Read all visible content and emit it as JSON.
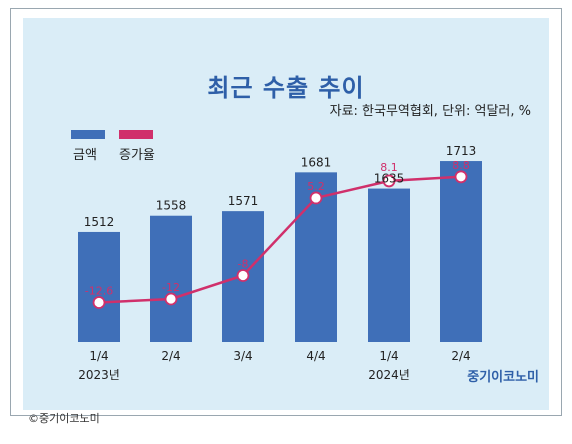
{
  "title": "최근 수출 추이",
  "source": "자료: 한국무역협회, 단위: 억달러, %",
  "legend": {
    "amount": {
      "label": "금액",
      "color": "#3f6fb8"
    },
    "growth": {
      "label": "증가율",
      "color": "#d0306b"
    }
  },
  "brand": "중기이코노미",
  "caption": "©중기이코노미",
  "chart_data": {
    "type": "bar",
    "categories": [
      "1/4",
      "2/4",
      "3/4",
      "4/4",
      "1/4",
      "2/4"
    ],
    "years": [
      {
        "label": "2023년",
        "under_index": 0
      },
      {
        "label": "2024년",
        "under_index": 4
      }
    ],
    "series": [
      {
        "name": "금액",
        "type": "bar",
        "values": [
          1512,
          1558,
          1571,
          1681,
          1635,
          1713
        ],
        "labels": [
          "1512",
          "1558",
          "1571",
          "1681",
          "1635",
          "1713"
        ]
      },
      {
        "name": "증가율",
        "type": "line",
        "values": [
          -12.6,
          -12,
          -8,
          5.2,
          8.1,
          8.8
        ],
        "labels": [
          "-12.6",
          "-12",
          "-8",
          "5.2",
          "8.1",
          "8.8"
        ]
      }
    ],
    "ylim_bar": [
      1200,
      1750
    ],
    "ylim_line": [
      -20,
      12
    ]
  }
}
